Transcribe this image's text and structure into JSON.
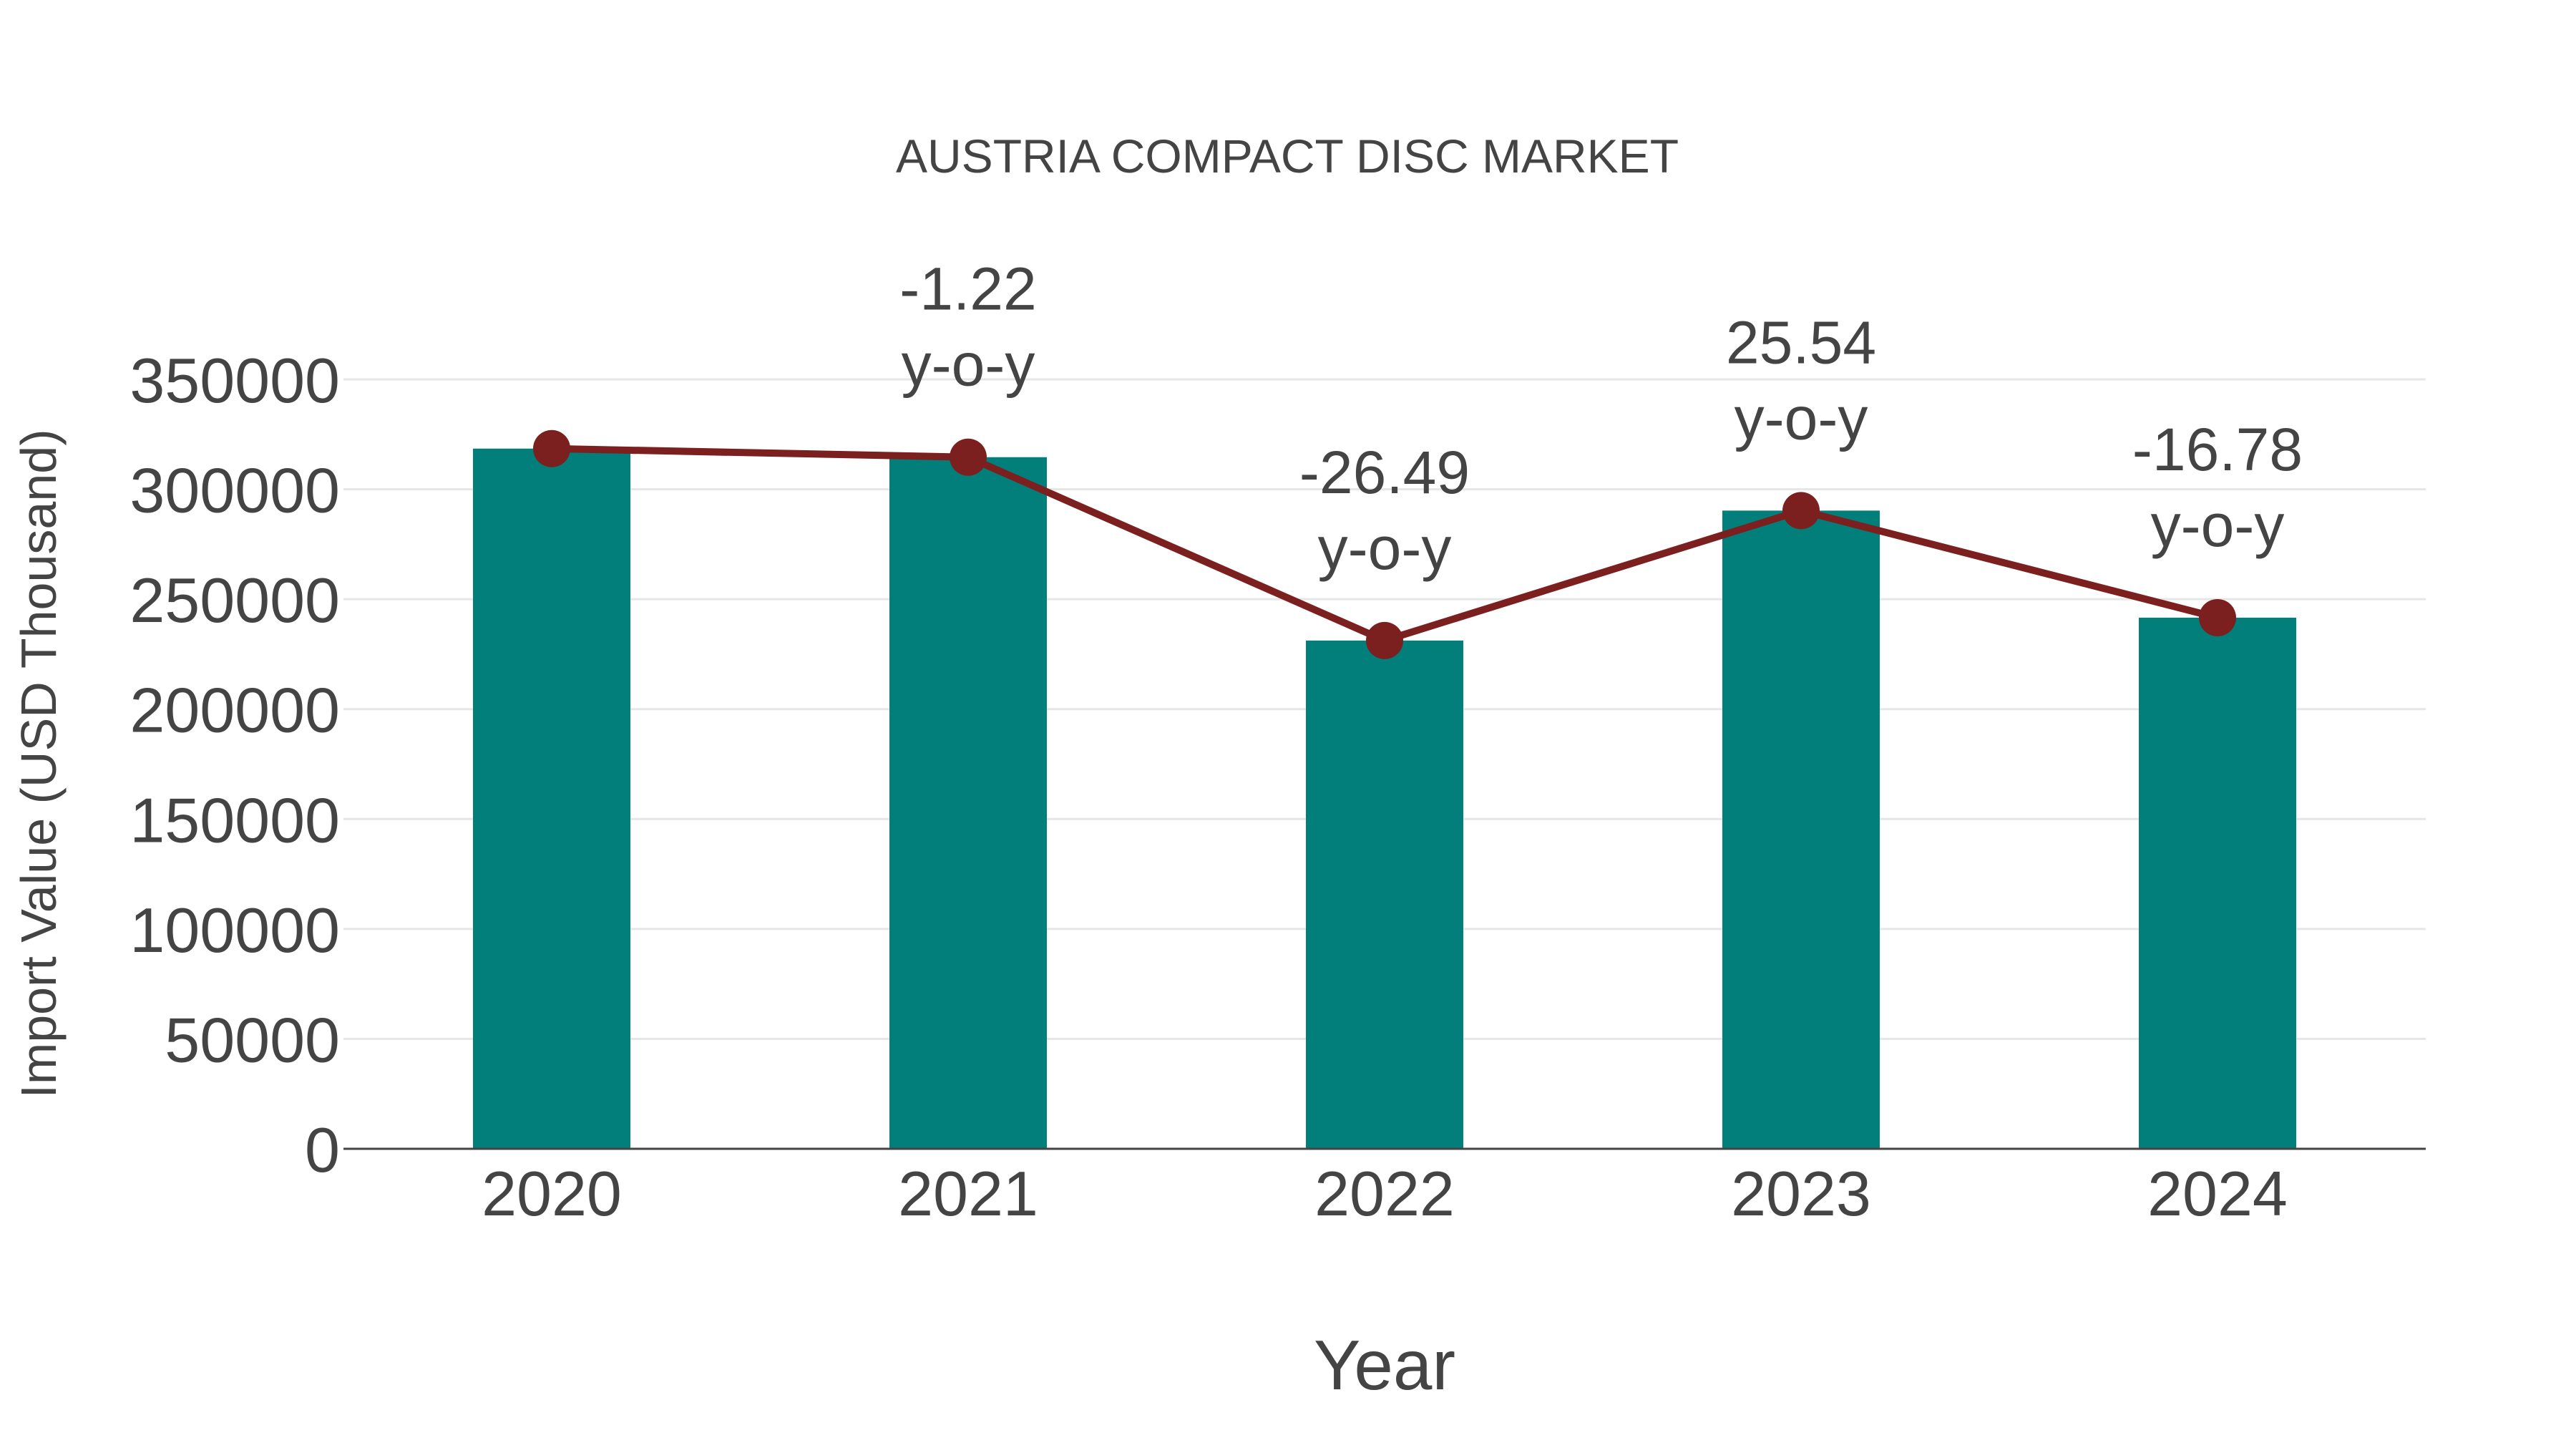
{
  "colors": {
    "bar": "#027f7b",
    "line": "#7b1f1f",
    "grid": "#e6e6e6",
    "axis": "#444444",
    "text": "#444444",
    "background": "#ffffff"
  },
  "chart_data": {
    "type": "bar",
    "title": "AUSTRIA COMPACT DISC MARKET",
    "xlabel": "Year",
    "ylabel": "Import Value (USD Thousand)",
    "categories": [
      "2020",
      "2021",
      "2022",
      "2023",
      "2024"
    ],
    "series": [
      {
        "name": "Import Value (USD Thousand)",
        "type": "bar",
        "values": [
          318500,
          314600,
          231200,
          290300,
          241600
        ]
      },
      {
        "name": "Import Value trend",
        "type": "line",
        "marker": "circle",
        "values": [
          318500,
          314600,
          231200,
          290300,
          241600
        ]
      }
    ],
    "annotations": [
      {
        "category": "2021",
        "value": "-1.22",
        "suffix": "y-o-y"
      },
      {
        "category": "2022",
        "value": "-26.49",
        "suffix": "y-o-y"
      },
      {
        "category": "2023",
        "value": "25.54",
        "suffix": "y-o-y"
      },
      {
        "category": "2024",
        "value": "-16.78",
        "suffix": "y-o-y"
      }
    ],
    "yticks": [
      0,
      50000,
      100000,
      150000,
      200000,
      250000,
      300000,
      350000
    ],
    "ylim": [
      0,
      350000
    ],
    "grid": true,
    "legend": false
  }
}
